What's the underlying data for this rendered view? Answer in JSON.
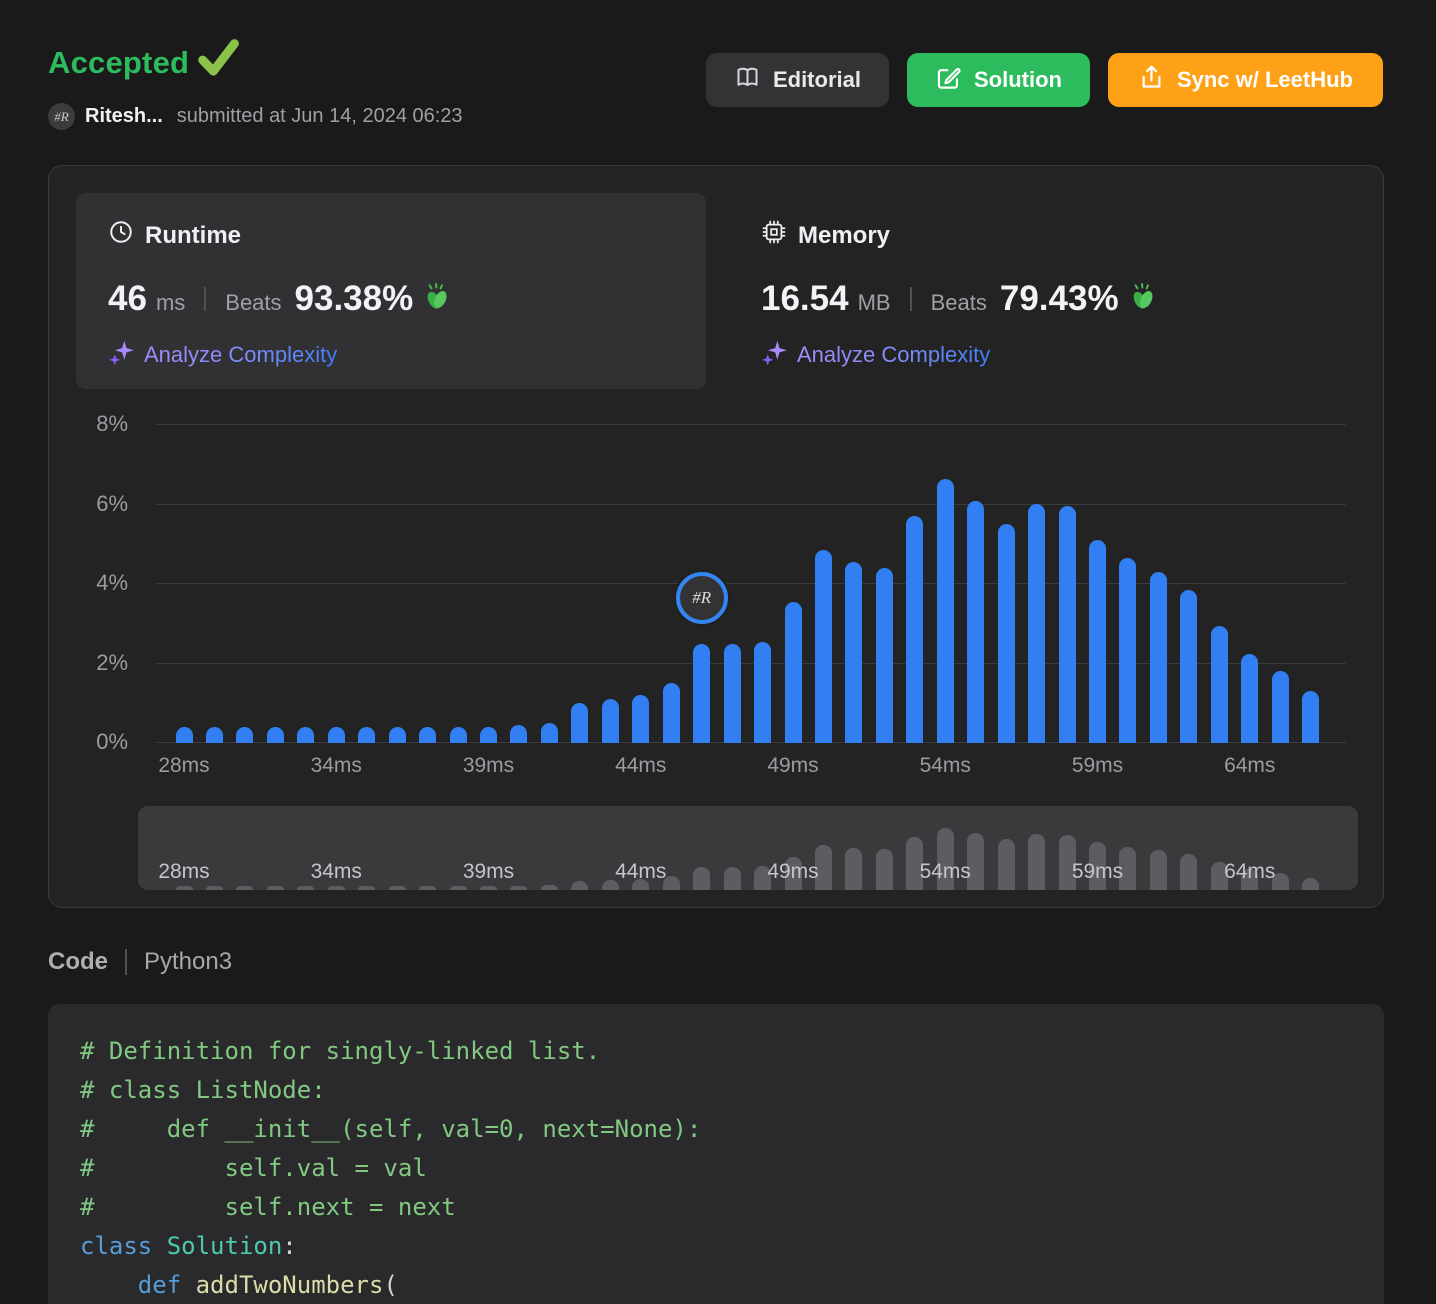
{
  "colors": {
    "accepted_green": "#2cbb5d",
    "solution_button_green": "#2cbb5d",
    "leethub_button_orange": "#ffa116",
    "bar_blue": "#317ff2",
    "analyze_gradient_start": "#a78bfa",
    "analyze_gradient_end": "#3f7df6"
  },
  "header": {
    "status_label": "Accepted",
    "avatar_text": "#R",
    "username": "Ritesh...",
    "submitted_text": "submitted at Jun 14, 2024 06:23",
    "buttons": {
      "editorial_label": "Editorial",
      "solution_label": "Solution",
      "sync_label": "Sync w/ LeetHub"
    }
  },
  "runtime_card": {
    "title": "Runtime",
    "value": "46",
    "unit": "ms",
    "beats_label": "Beats",
    "beats_value": "93.38%",
    "analyze_label": "Analyze Complexity"
  },
  "memory_card": {
    "title": "Memory",
    "value": "16.54",
    "unit": "MB",
    "beats_label": "Beats",
    "beats_value": "79.43%",
    "analyze_label": "Analyze Complexity"
  },
  "chart_data": {
    "type": "bar",
    "title": "",
    "xlabel": "",
    "ylabel": "",
    "ylim": [
      0,
      8
    ],
    "y_ticks": [
      "0%",
      "2%",
      "4%",
      "6%",
      "8%"
    ],
    "x_tick_labels": [
      "28ms",
      "34ms",
      "39ms",
      "44ms",
      "49ms",
      "54ms",
      "59ms",
      "64ms"
    ],
    "x_tick_indices": [
      0,
      5,
      10,
      15,
      20,
      25,
      30,
      35
    ],
    "values": [
      0.4,
      0.4,
      0.4,
      0.4,
      0.4,
      0.4,
      0.4,
      0.4,
      0.4,
      0.4,
      0.4,
      0.45,
      0.5,
      1.0,
      1.1,
      1.2,
      1.5,
      2.5,
      2.5,
      2.55,
      3.55,
      4.85,
      4.55,
      4.4,
      5.7,
      6.65,
      6.1,
      5.5,
      6.0,
      5.95,
      5.1,
      4.65,
      4.3,
      3.85,
      2.95,
      2.25,
      1.8,
      1.3
    ],
    "bar_color": "#317ff2",
    "grid": true,
    "legend": "none",
    "user_marker": {
      "index": 17,
      "avatar_text": "#R",
      "y_percent": 3.65
    },
    "minimap": {
      "same_values": true,
      "x_tick_labels": [
        "28ms",
        "34ms",
        "39ms",
        "44ms",
        "49ms",
        "54ms",
        "59ms",
        "64ms"
      ]
    }
  },
  "code_section": {
    "label": "Code",
    "language": "Python3",
    "lines": [
      [
        {
          "t": "# Definition for singly-linked list.",
          "c": "comment"
        }
      ],
      [
        {
          "t": "# class ListNode:",
          "c": "comment"
        }
      ],
      [
        {
          "t": "#     def __init__(self, val=0, next=None):",
          "c": "comment"
        }
      ],
      [
        {
          "t": "#         self.val = val",
          "c": "comment"
        }
      ],
      [
        {
          "t": "#         self.next = next",
          "c": "comment"
        }
      ],
      [
        {
          "t": "class",
          "c": "keyword"
        },
        {
          "t": " ",
          "c": "plain"
        },
        {
          "t": "Solution",
          "c": "type"
        },
        {
          "t": ":",
          "c": "plain"
        }
      ],
      [
        {
          "t": "    ",
          "c": "plain"
        },
        {
          "t": "def",
          "c": "keyword"
        },
        {
          "t": " ",
          "c": "plain"
        },
        {
          "t": "addTwoNumbers",
          "c": "func"
        },
        {
          "t": "(",
          "c": "plain"
        }
      ]
    ]
  }
}
